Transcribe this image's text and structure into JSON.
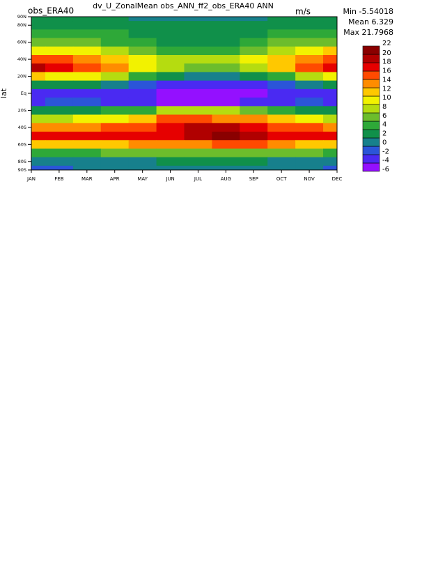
{
  "chart_data": {
    "type": "contour",
    "title": "dv_U_ZonalMean obs_ANN_ff2_obs_ERA40 ANN",
    "left_label": "obs_ERA40",
    "units": "m/s",
    "y_label": "lat",
    "stats": [
      {
        "label": "Min",
        "value": -5.54018
      },
      {
        "label": "Mean",
        "value": 6.329
      },
      {
        "label": "Max",
        "value": 21.7968
      }
    ],
    "categories": [
      "JAN",
      "FEB",
      "MAR",
      "APR",
      "MAY",
      "JUN",
      "JUL",
      "AUG",
      "SEP",
      "OCT",
      "NOV",
      "DEC"
    ],
    "y": [
      90,
      80,
      70,
      60,
      50,
      40,
      30,
      20,
      10,
      0,
      -10,
      -20,
      -30,
      -40,
      -50,
      -60,
      -70,
      -80,
      -90
    ],
    "ylim": [
      -90,
      90
    ],
    "yticks": [
      {
        "value": 90,
        "label": "90N"
      },
      {
        "value": 80,
        "label": "80N"
      },
      {
        "value": 60,
        "label": "60N"
      },
      {
        "value": 40,
        "label": "40N"
      },
      {
        "value": 20,
        "label": "20N"
      },
      {
        "value": 0,
        "label": "Eq"
      },
      {
        "value": -20,
        "label": "20S"
      },
      {
        "value": -40,
        "label": "40S"
      },
      {
        "value": -60,
        "label": "60S"
      },
      {
        "value": -80,
        "label": "80S"
      },
      {
        "value": -90,
        "label": "90S"
      }
    ],
    "values": [
      [
        2,
        2,
        2,
        2,
        1,
        1,
        1,
        1,
        1,
        2,
        2,
        2
      ],
      [
        3,
        3,
        3,
        3,
        2,
        2,
        2,
        2,
        2,
        3,
        3,
        3
      ],
      [
        5,
        5,
        5,
        4,
        3,
        2,
        2,
        2,
        3,
        4,
        5,
        5
      ],
      [
        7,
        7,
        6,
        5,
        4,
        3,
        3,
        3,
        4,
        6,
        7,
        7
      ],
      [
        11,
        11,
        10,
        8,
        6,
        5,
        5,
        5,
        6,
        9,
        11,
        12
      ],
      [
        16,
        16,
        14,
        12,
        10,
        8,
        9,
        9,
        10,
        13,
        15,
        16
      ],
      [
        20,
        19,
        17,
        14,
        11,
        8,
        6,
        6,
        8,
        12,
        16,
        19
      ],
      [
        12,
        11,
        10,
        8,
        5,
        2,
        0,
        0,
        2,
        5,
        9,
        11
      ],
      [
        2,
        2,
        2,
        1,
        -1,
        -3,
        -4,
        -4,
        -3,
        -1,
        1,
        2
      ],
      [
        -3,
        -3,
        -3,
        -3,
        -4,
        -5,
        -6,
        -6,
        -5,
        -4,
        -3,
        -3
      ],
      [
        -3,
        -2,
        -2,
        -3,
        -4,
        -5,
        -5,
        -5,
        -4,
        -3,
        -2,
        -3
      ],
      [
        3,
        3,
        3,
        4,
        5,
        8,
        9,
        8,
        6,
        4,
        3,
        3
      ],
      [
        9,
        9,
        10,
        11,
        13,
        16,
        16,
        15,
        14,
        12,
        10,
        9
      ],
      [
        15,
        15,
        15,
        16,
        17,
        19,
        20,
        20,
        19,
        17,
        16,
        15
      ],
      [
        18,
        18,
        18,
        18,
        18,
        19,
        21,
        22,
        21,
        19,
        18,
        18
      ],
      [
        12,
        12,
        12,
        13,
        14,
        14,
        15,
        16,
        16,
        15,
        13,
        12
      ],
      [
        5,
        5,
        5,
        6,
        6,
        6,
        7,
        7,
        7,
        7,
        6,
        5
      ],
      [
        0,
        0,
        1,
        1,
        1,
        2,
        2,
        2,
        2,
        1,
        1,
        0
      ],
      [
        -1,
        -1,
        0,
        0,
        0,
        1,
        1,
        1,
        1,
        0,
        0,
        -1
      ]
    ],
    "levels": [
      -6,
      -4,
      -2,
      0,
      2,
      4,
      6,
      8,
      10,
      12,
      14,
      16,
      18,
      20,
      22
    ],
    "colors": [
      "#9410ff",
      "#4a2af2",
      "#2b55d8",
      "#17808c",
      "#10904a",
      "#2ea838",
      "#6cbd2c",
      "#b5dc10",
      "#f2f200",
      "#ffc800",
      "#ff8c00",
      "#ff4a00",
      "#e60000",
      "#b00000",
      "#8a0000"
    ]
  }
}
